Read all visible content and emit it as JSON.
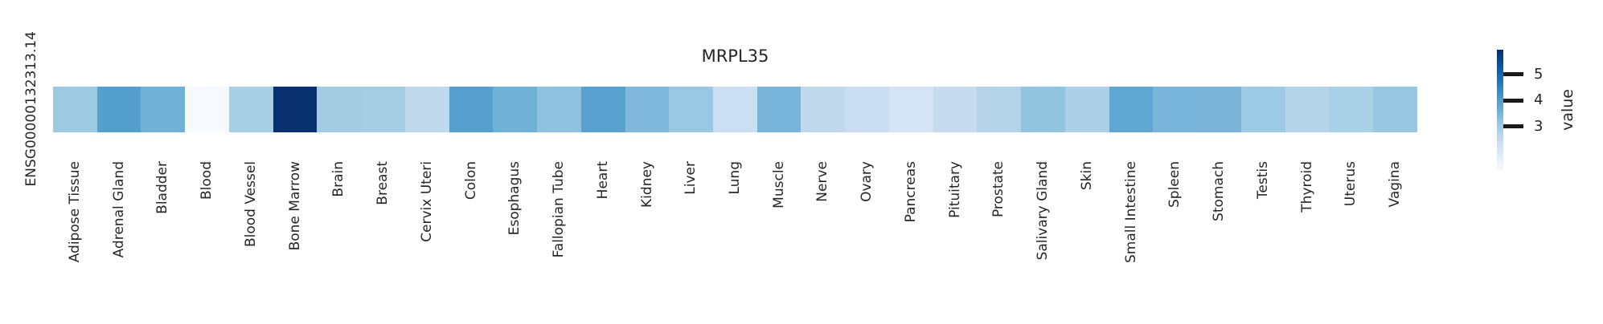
{
  "title": "MRPL35",
  "row_label": "ENSG00000132313.14",
  "colorbar": {
    "label": "value",
    "ticks": [
      5,
      4,
      3
    ],
    "vmin": 1.34,
    "vmax": 5.95,
    "gradient_top_to_bottom": [
      "#08306b",
      "#08519c",
      "#2171b5",
      "#4292c6",
      "#6baed6",
      "#9ecae1",
      "#c6dbef",
      "#deebf7",
      "#f7fbff"
    ]
  },
  "chart_data": {
    "type": "heatmap",
    "title": "MRPL35",
    "rows": [
      "ENSG00000132313.14"
    ],
    "colormap": "Blues",
    "value_label": "value",
    "colorbar_ticks": [
      3,
      4,
      5
    ],
    "vmin": 1.34,
    "vmax": 5.95,
    "categories": [
      "Adipose Tissue",
      "Adrenal Gland",
      "Bladder",
      "Blood",
      "Blood Vessel",
      "Bone Marrow",
      "Brain",
      "Breast",
      "Cervix Uteri",
      "Colon",
      "Esophagus",
      "Fallopian Tube",
      "Heart",
      "Kidney",
      "Liver",
      "Lung",
      "Muscle",
      "Nerve",
      "Ovary",
      "Pancreas",
      "Pituitary",
      "Prostate",
      "Salivary Gland",
      "Skin",
      "Small Intestine",
      "Spleen",
      "Stomach",
      "Testis",
      "Thyroid",
      "Uterus",
      "Vagina"
    ],
    "values": [
      3.08,
      3.92,
      3.57,
      1.4,
      2.93,
      5.95,
      3.01,
      2.98,
      2.58,
      3.9,
      3.57,
      3.25,
      3.87,
      3.42,
      3.12,
      2.33,
      3.48,
      2.58,
      2.36,
      2.12,
      2.48,
      2.79,
      3.22,
      2.87,
      3.79,
      3.48,
      3.46,
      3.1,
      2.76,
      2.9,
      3.15
    ],
    "colors": [
      "#9dcae1",
      "#549fcd",
      "#70b1d8",
      "#f6fafe",
      "#a9cfe5",
      "#09306e",
      "#a3cce3",
      "#a5cde3",
      "#c0d8ec",
      "#569fce",
      "#70b1d8",
      "#8fc2df",
      "#58a1ce",
      "#80b9dc",
      "#9ac7e1",
      "#cbdff2",
      "#79b5da",
      "#c0d8ec",
      "#cbdef1",
      "#d5e4f4",
      "#c6dbee",
      "#b4d3e9",
      "#92c3df",
      "#aed0e6",
      "#5fa7d2",
      "#79b5da",
      "#7bb6da",
      "#9cc9e3",
      "#b5d4ea",
      "#aad0e7",
      "#98c7e1"
    ],
    "text_color": "#262626"
  }
}
